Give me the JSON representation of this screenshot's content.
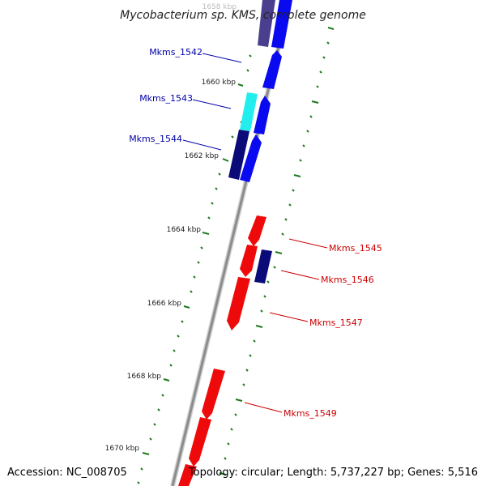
{
  "title": "Mycobacterium sp. KMS, complete genome",
  "top_cut_label": "1658 kbp",
  "accession": "Accession: NC_008705",
  "summary": "Topology: circular; Length: 5,737,227 bp; Genes: 5,516",
  "ticks": [
    {
      "label": "1660 kbp"
    },
    {
      "label": "1662 kbp"
    },
    {
      "label": "1664 kbp"
    },
    {
      "label": "1666 kbp"
    },
    {
      "label": "1668 kbp"
    },
    {
      "label": "1670 kbp"
    }
  ],
  "genes_left": [
    {
      "label": "Mkms_1542"
    },
    {
      "label": "Mkms_1543"
    },
    {
      "label": "Mkms_1544"
    }
  ],
  "genes_right": [
    {
      "label": "Mkms_1545"
    },
    {
      "label": "Mkms_1546"
    },
    {
      "label": "Mkms_1547"
    },
    {
      "label": "Mkms_1549"
    }
  ],
  "colors": {
    "backbone": "#8c8c8c",
    "forward": "#0a0af0",
    "navy": "#0a0a78",
    "cyan": "#22eeee",
    "slate": "#4a3f8e",
    "reverse": "#ee0a0a",
    "tick": "#1e7a1e",
    "left_label": "#0000aa",
    "right_label": "#cc0000"
  }
}
